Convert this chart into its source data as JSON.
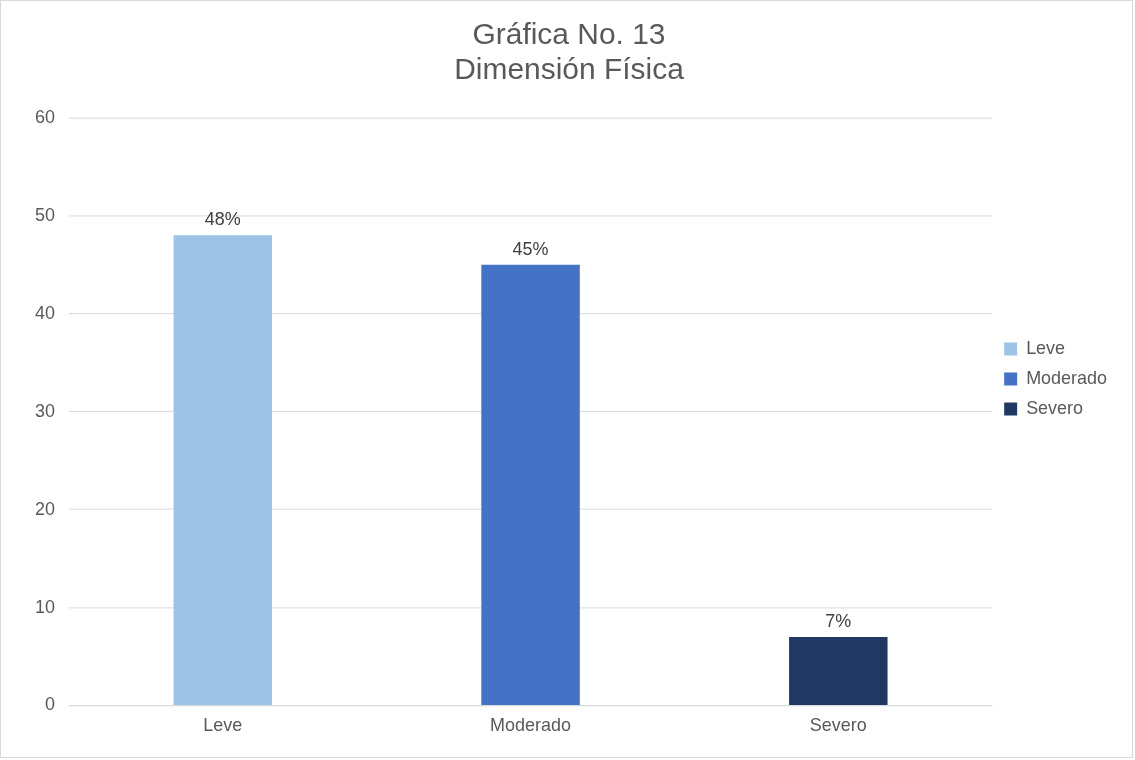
{
  "chart_data": {
    "type": "bar",
    "title": "Gráfica No. 13\nDimensión Física",
    "categories": [
      "Leve",
      "Moderado",
      "Severo"
    ],
    "series": [
      {
        "name": "Leve",
        "color": "#9dc3e6",
        "values": [
          48,
          null,
          null
        ],
        "value_labels": [
          "48%",
          null,
          null
        ]
      },
      {
        "name": "Moderado",
        "color": "#4472c4",
        "values": [
          null,
          45,
          null
        ],
        "value_labels": [
          null,
          "45%",
          null
        ]
      },
      {
        "name": "Severo",
        "color": "#203864",
        "values": [
          null,
          null,
          7
        ],
        "value_labels": [
          null,
          null,
          "7%"
        ]
      }
    ],
    "ylim": [
      0,
      60
    ],
    "yticks": [
      0,
      10,
      20,
      30,
      40,
      50,
      60
    ],
    "grid": "y",
    "legend": "right"
  }
}
